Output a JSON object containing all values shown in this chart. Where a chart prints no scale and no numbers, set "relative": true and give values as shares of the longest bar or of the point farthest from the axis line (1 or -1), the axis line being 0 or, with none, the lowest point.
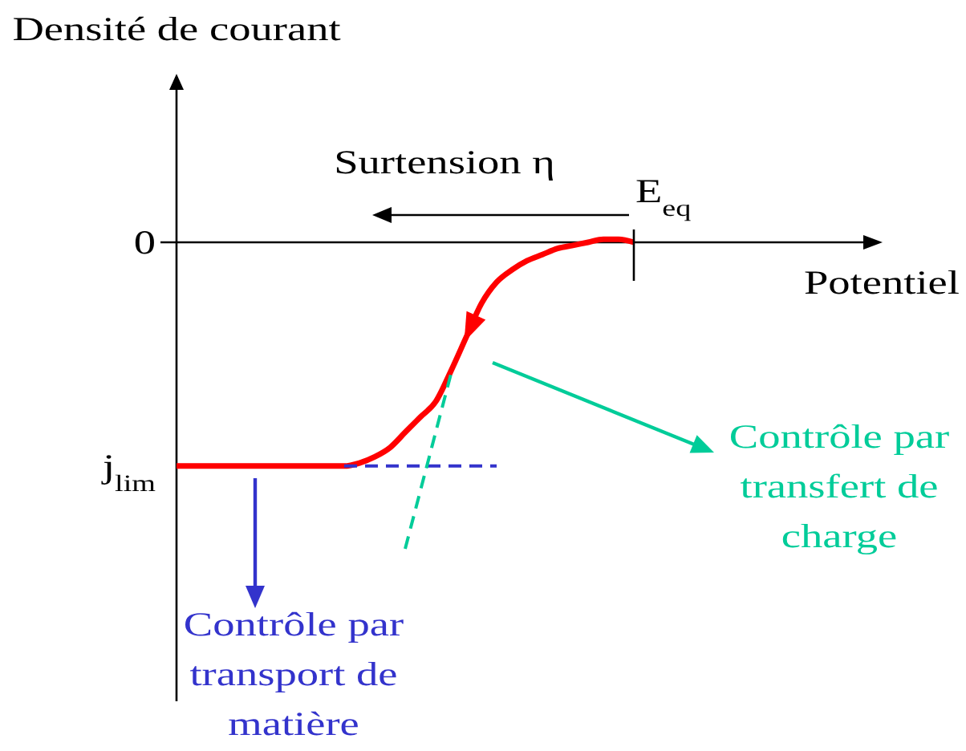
{
  "chart_data": {
    "type": "line",
    "relative": true,
    "xlabel": "Potentiel",
    "categories": [
      null,
      null,
      null,
      null,
      null,
      null,
      null,
      null,
      null,
      null,
      null,
      null,
      null,
      null,
      null,
      null,
      null,
      null,
      null,
      null,
      null,
      null,
      null,
      null,
      null,
      null,
      null,
      null,
      null,
      null,
      null,
      null,
      null,
      null,
      null,
      null,
      null,
      null,
      null,
      null,
      null,
      null,
      null,
      null,
      null,
      null,
      null
    ],
    "series": [
      {
        "color": "#ff0000",
        "values": [
          -0.73,
          -0.73,
          -0.73,
          -0.73,
          -0.73,
          -0.73,
          -0.73,
          -0.73,
          -0.73,
          -0.73,
          -0.73,
          -0.73,
          -0.72,
          -0.7,
          -0.67,
          -0.62,
          -0.57,
          -0.52,
          -0.42,
          -0.31,
          -0.2,
          -0.13,
          -0.09,
          -0.06,
          -0.04,
          -0.02,
          -0.01,
          0,
          0.01,
          0.01,
          0,
          null,
          null,
          null,
          null,
          null,
          null,
          null,
          null,
          null,
          null,
          null,
          null,
          null,
          null,
          null,
          null
        ]
      },
      {
        "color": "#3333cc",
        "line_style": "dashed",
        "values": [
          null,
          null,
          null,
          null,
          null,
          null,
          null,
          null,
          null,
          null,
          null,
          -0.73,
          -0.73,
          -0.73,
          -0.73,
          -0.73,
          -0.73,
          -0.73,
          -0.73,
          -0.73,
          -0.73,
          -0.73,
          null,
          null,
          null,
          null,
          null,
          null,
          null,
          null,
          null,
          null,
          null,
          null,
          null,
          null,
          null,
          null,
          null,
          null,
          null,
          null,
          null,
          null,
          null,
          null,
          null
        ]
      },
      {
        "color": "#00cc99",
        "line_style": "dashed",
        "values": [
          null,
          null,
          null,
          null,
          null,
          null,
          null,
          null,
          null,
          null,
          null,
          null,
          null,
          null,
          null,
          -1,
          -0.81,
          -0.62,
          -0.43,
          null,
          null,
          null,
          null,
          null,
          null,
          null,
          null,
          null,
          null,
          null,
          null,
          null,
          null,
          null,
          null,
          null,
          null,
          null,
          null,
          null,
          null,
          null,
          null,
          null,
          null,
          null,
          null
        ]
      }
    ],
    "annotations": [
      "Densité de courant",
      "0",
      "j$_{lim}$",
      "E$_{eq}$",
      "Surtension η",
      "Contrôle par transfert de charge",
      "Contrôle par transport de matière"
    ]
  }
}
